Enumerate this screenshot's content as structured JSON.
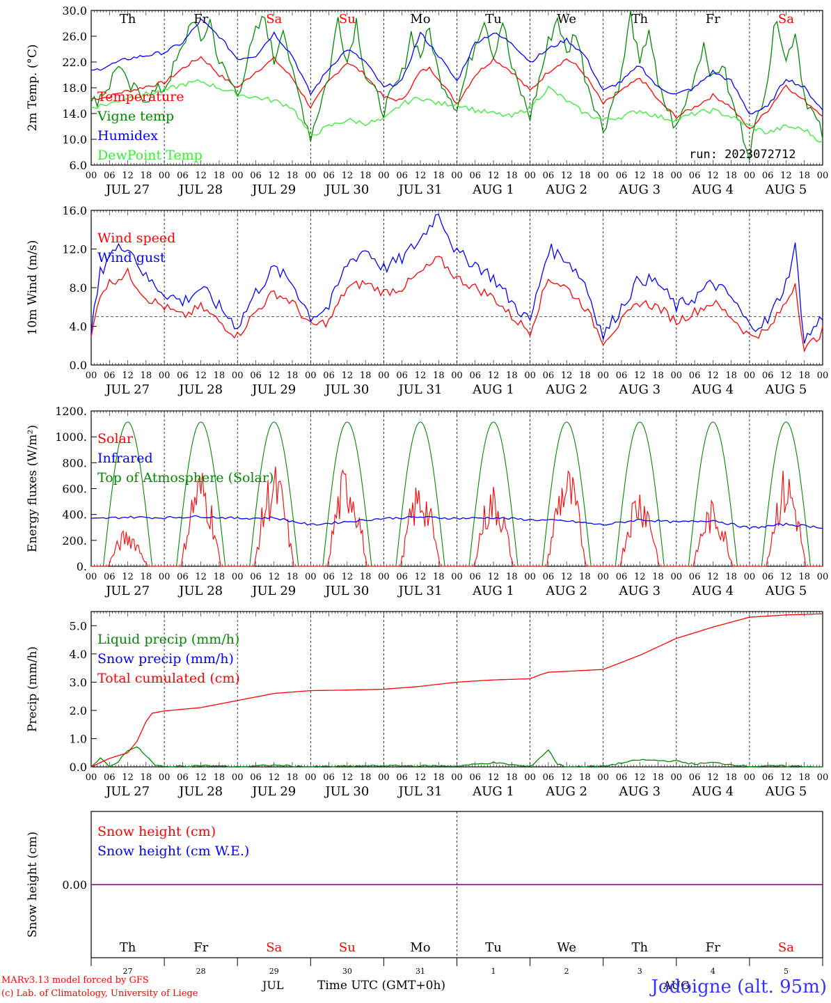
{
  "footer": {
    "credit_line1": "MARv3.13 model forced by GFS",
    "credit_line2": "(c) Lab. of Climatology, University of Liege",
    "time_axis_label": "Time UTC (GMT+0h)",
    "station": "Jodoigne (alt. 95m)",
    "month_jul": "JUL",
    "month_aug": "AUG"
  },
  "run": "run: 2023072712",
  "day_names": [
    "Th",
    "Fr",
    "Sa",
    "Su",
    "Mo",
    "Tu",
    "We",
    "Th",
    "Fr",
    "Sa"
  ],
  "weekend_days": [
    2,
    3,
    9
  ],
  "date_labels": [
    "JUL 27",
    "JUL 28",
    "JUL 29",
    "JUL 30",
    "JUL 31",
    "AUG  1",
    "AUG  2",
    "AUG  3",
    "AUG  4",
    "AUG  5"
  ],
  "day_numbers": [
    "27",
    "28",
    "29",
    "30",
    "31",
    "1",
    "2",
    "3",
    "4",
    "5"
  ],
  "hour_ticks": [
    "00",
    "06",
    "12",
    "18"
  ],
  "colors": {
    "red": "#ff0000",
    "green": "#008800",
    "blue": "#0000ff",
    "light_green": "#33ee33",
    "purple": "#7f007f",
    "grid": "#000000"
  },
  "chart_data": [
    {
      "type": "line",
      "ylabel": "2m Temp. (°C)",
      "ylim": [
        6,
        30
      ],
      "yticks": [
        "6.0",
        "10.0",
        "14.0",
        "18.0",
        "22.0",
        "26.0",
        "30.0"
      ],
      "x_unit": "hours since JUL 27 00 UTC",
      "xlim": [
        0,
        240
      ],
      "series": [
        {
          "name": "Temperature",
          "color": "red",
          "x": [
            0,
            6,
            9,
            12,
            15,
            18,
            24,
            30,
            36,
            39,
            42,
            48,
            54,
            60,
            63,
            66,
            72,
            78,
            84,
            87,
            90,
            96,
            102,
            108,
            111,
            114,
            120,
            126,
            132,
            135,
            138,
            144,
            150,
            156,
            159,
            162,
            168,
            174,
            180,
            183,
            186,
            192,
            198,
            204,
            207,
            210,
            216,
            222,
            228,
            231,
            234,
            240
          ],
          "y": [
            16.3,
            16.6,
            17.2,
            17.5,
            17.8,
            18.2,
            18.8,
            21.0,
            22.8,
            21.5,
            20.0,
            18.0,
            20.5,
            22.5,
            21.0,
            19.5,
            15.0,
            19.0,
            22.0,
            21.0,
            20.0,
            16.5,
            16.0,
            20.5,
            21.0,
            19.5,
            15.5,
            20.0,
            22.5,
            21.5,
            20.5,
            17.5,
            20.5,
            22.5,
            21.5,
            20.0,
            15.5,
            17.5,
            19.5,
            18.0,
            16.0,
            13.5,
            15.0,
            16.8,
            16.0,
            15.0,
            11.5,
            14.5,
            18.5,
            17.0,
            16.0,
            13.8
          ]
        },
        {
          "name": "Vigne temp",
          "color": "green",
          "x": [
            0,
            6,
            9,
            12,
            15,
            18,
            24,
            30,
            33,
            36,
            39,
            42,
            48,
            54,
            57,
            60,
            63,
            66,
            72,
            78,
            81,
            84,
            87,
            90,
            96,
            102,
            105,
            108,
            111,
            114,
            120,
            126,
            129,
            132,
            135,
            138,
            144,
            150,
            153,
            156,
            159,
            162,
            168,
            174,
            177,
            180,
            183,
            186,
            192,
            198,
            201,
            204,
            207,
            210,
            216,
            222,
            225,
            228,
            231,
            234,
            240
          ],
          "y": [
            15.2,
            18.5,
            22.0,
            18.0,
            17.5,
            16.5,
            18.0,
            24.0,
            29.0,
            25.0,
            28.5,
            22.0,
            17.0,
            26.5,
            29.0,
            22.0,
            28.0,
            20.0,
            10.5,
            20.0,
            29.0,
            22.0,
            28.5,
            20.0,
            14.5,
            20.0,
            26.5,
            23.0,
            27.0,
            20.0,
            15.0,
            25.0,
            29.0,
            23.0,
            28.5,
            21.0,
            13.5,
            25.0,
            29.0,
            23.0,
            27.0,
            20.0,
            11.5,
            20.0,
            29.5,
            21.0,
            27.5,
            18.0,
            11.5,
            20.0,
            25.0,
            19.0,
            22.0,
            16.0,
            8.0,
            20.0,
            29.5,
            22.0,
            27.0,
            17.0,
            10.5
          ]
        },
        {
          "name": "Humidex",
          "color": "blue",
          "x": [
            0,
            6,
            12,
            18,
            24,
            30,
            36,
            42,
            48,
            54,
            60,
            66,
            72,
            78,
            84,
            90,
            96,
            102,
            108,
            114,
            120,
            126,
            132,
            138,
            144,
            150,
            156,
            162,
            168,
            174,
            180,
            186,
            192,
            198,
            204,
            210,
            216,
            222,
            228,
            234,
            240
          ],
          "y": [
            20.5,
            21.5,
            22.5,
            23.0,
            23.5,
            25.0,
            28.5,
            26.0,
            22.5,
            23.0,
            26.5,
            23.0,
            17.0,
            21.0,
            24.0,
            22.0,
            18.0,
            19.0,
            26.5,
            23.0,
            19.0,
            25.0,
            26.5,
            25.0,
            22.0,
            24.0,
            25.5,
            23.0,
            17.5,
            19.0,
            21.5,
            18.0,
            17.0,
            18.0,
            20.5,
            19.0,
            14.0,
            15.0,
            19.5,
            18.0,
            14.5
          ]
        },
        {
          "name": "DewPoint Temp",
          "color": "light_green",
          "x": [
            0,
            6,
            12,
            18,
            24,
            30,
            36,
            42,
            48,
            54,
            60,
            66,
            72,
            78,
            84,
            90,
            96,
            102,
            108,
            114,
            120,
            126,
            132,
            138,
            144,
            150,
            156,
            162,
            168,
            174,
            180,
            186,
            192,
            198,
            204,
            210,
            216,
            222,
            228,
            234,
            240
          ],
          "y": [
            15.0,
            15.5,
            16.5,
            17.0,
            17.5,
            18.5,
            19.0,
            18.0,
            17.0,
            16.5,
            16.0,
            15.0,
            10.5,
            12.0,
            13.0,
            12.5,
            13.0,
            15.5,
            16.5,
            15.5,
            15.5,
            14.5,
            14.0,
            13.5,
            15.0,
            18.0,
            16.0,
            14.0,
            13.0,
            13.5,
            14.5,
            13.5,
            13.0,
            14.0,
            14.5,
            13.5,
            12.0,
            11.0,
            12.0,
            11.5,
            9.5
          ]
        }
      ]
    },
    {
      "type": "line",
      "ylabel": "10m Wind (m/s)",
      "ylim": [
        0,
        16
      ],
      "yticks": [
        "0.0",
        "4.0",
        "8.0",
        "12.0",
        "16.0"
      ],
      "reference_line": 5,
      "xlim": [
        0,
        240
      ],
      "series": [
        {
          "name": "Wind speed",
          "color": "red",
          "x": [
            0,
            3,
            6,
            12,
            18,
            24,
            30,
            36,
            42,
            48,
            54,
            60,
            66,
            72,
            78,
            84,
            90,
            96,
            102,
            108,
            114,
            120,
            126,
            132,
            138,
            144,
            150,
            156,
            162,
            168,
            174,
            180,
            186,
            192,
            198,
            204,
            210,
            216,
            222,
            228,
            231,
            234,
            240
          ],
          "y": [
            2.8,
            7.5,
            8.5,
            9.5,
            7.0,
            6.0,
            5.0,
            6.0,
            4.5,
            3.0,
            5.5,
            7.5,
            6.5,
            4.0,
            4.5,
            8.0,
            8.5,
            7.5,
            8.0,
            9.5,
            11.0,
            9.0,
            8.0,
            7.0,
            5.0,
            3.5,
            9.0,
            8.0,
            6.0,
            2.5,
            4.5,
            6.5,
            6.0,
            4.5,
            5.5,
            6.5,
            5.0,
            3.0,
            3.5,
            6.5,
            8.5,
            1.5,
            3.5
          ]
        },
        {
          "name": "Wind gust",
          "color": "blue",
          "x": [
            0,
            3,
            6,
            12,
            18,
            24,
            30,
            36,
            42,
            48,
            54,
            60,
            66,
            72,
            78,
            84,
            90,
            96,
            102,
            108,
            114,
            120,
            126,
            132,
            138,
            144,
            150,
            156,
            162,
            168,
            174,
            180,
            186,
            192,
            198,
            204,
            210,
            216,
            222,
            228,
            231,
            234,
            240
          ],
          "y": [
            3.5,
            9.5,
            11.5,
            12.5,
            9.0,
            7.5,
            6.5,
            8.0,
            6.0,
            4.0,
            7.5,
            10.0,
            8.5,
            5.0,
            6.0,
            10.5,
            12.0,
            10.0,
            11.0,
            13.0,
            15.8,
            11.5,
            10.5,
            9.0,
            6.5,
            4.5,
            12.0,
            11.0,
            8.5,
            3.0,
            6.0,
            9.0,
            8.5,
            6.0,
            7.0,
            8.5,
            7.0,
            4.0,
            4.5,
            8.5,
            12.2,
            2.5,
            5.0
          ]
        }
      ]
    },
    {
      "type": "line",
      "ylabel": "Energy fluxes (W/m²)",
      "ylim": [
        0,
        1200
      ],
      "yticks": [
        "0.",
        "200.",
        "400.",
        "600.",
        "800.",
        "1000.",
        "1200."
      ],
      "xlim": [
        0,
        240
      ],
      "series": [
        {
          "name": "Solar",
          "color": "red",
          "daily_peaks": [
            300,
            780,
            800,
            820,
            680,
            650,
            800,
            660,
            520,
            780
          ]
        },
        {
          "name": "Infrared",
          "color": "blue",
          "x": [
            0,
            12,
            24,
            36,
            48,
            60,
            72,
            84,
            96,
            108,
            120,
            132,
            144,
            156,
            168,
            180,
            192,
            204,
            216,
            228,
            240
          ],
          "y": [
            365,
            380,
            375,
            385,
            370,
            375,
            320,
            345,
            370,
            380,
            370,
            375,
            360,
            350,
            320,
            360,
            340,
            355,
            295,
            325,
            300
          ]
        },
        {
          "name": "Top of Atmosphere (Solar)",
          "color": "green",
          "daily_peak": 1115,
          "sunrise_hour": 4,
          "sunset_hour": 20
        }
      ]
    },
    {
      "type": "line",
      "ylabel": "Precip (mm/h)",
      "ylim": [
        0,
        5.5
      ],
      "yticks": [
        "0.0",
        "1.0",
        "2.0",
        "3.0",
        "4.0",
        "5.0"
      ],
      "xlim": [
        0,
        240
      ],
      "series": [
        {
          "name": "Liquid precip (mm/h)",
          "color": "green",
          "x": [
            0,
            3,
            6,
            9,
            12,
            15,
            18,
            21,
            24,
            36,
            48,
            60,
            72,
            96,
            120,
            132,
            144,
            147,
            150,
            153,
            156,
            168,
            180,
            192,
            198,
            204,
            216,
            228,
            240
          ],
          "y": [
            0,
            0.3,
            0,
            0.2,
            0.6,
            0.7,
            0.4,
            0.05,
            0,
            0.05,
            0,
            0.06,
            0,
            0.04,
            0.03,
            0.15,
            0,
            0.3,
            0.6,
            0.1,
            0,
            0.02,
            0.25,
            0.2,
            0.1,
            0.15,
            0.02,
            0.03,
            0
          ]
        },
        {
          "name": "Snow precip (mm/h)",
          "color": "blue",
          "x": [
            0,
            240
          ],
          "y": [
            0,
            0
          ]
        },
        {
          "name": "Total cumulated (cm)",
          "color": "red",
          "x": [
            0,
            6,
            12,
            15,
            18,
            20,
            24,
            36,
            48,
            60,
            72,
            84,
            96,
            108,
            120,
            132,
            144,
            147,
            150,
            168,
            180,
            192,
            204,
            216,
            228,
            240
          ],
          "y": [
            0,
            0.3,
            0.5,
            0.9,
            1.6,
            1.9,
            1.98,
            2.1,
            2.35,
            2.6,
            2.7,
            2.72,
            2.75,
            2.85,
            3.0,
            3.08,
            3.12,
            3.25,
            3.35,
            3.45,
            3.95,
            4.55,
            4.95,
            5.3,
            5.38,
            5.42
          ]
        }
      ]
    },
    {
      "type": "line",
      "ylabel": "Snow height (cm)",
      "ytick": "0.00",
      "xlim": [
        0,
        240
      ],
      "series": [
        {
          "name": "Snow height (cm)",
          "color": "red",
          "x": [
            0,
            240
          ],
          "y": [
            0,
            0
          ]
        },
        {
          "name": "Snow height (cm W.E.)",
          "color": "blue",
          "x": [
            0,
            240
          ],
          "y": [
            0,
            0
          ]
        }
      ]
    }
  ]
}
